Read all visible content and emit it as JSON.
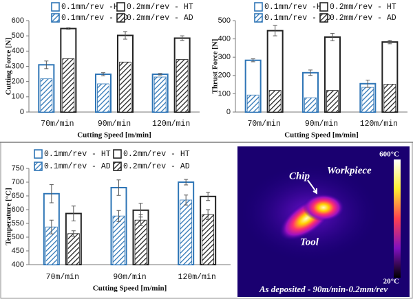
{
  "chart_data": [
    {
      "type": "bar",
      "y_label": "Cutting Force [N]",
      "x_label": "Cutting Speed [m/min]",
      "categories": [
        "70m/min",
        "90m/min",
        "120m/min"
      ],
      "ylim": [
        0,
        600
      ],
      "yticks": [
        0,
        100,
        200,
        300,
        400,
        500,
        600
      ],
      "series": [
        {
          "name": "0.1mm/rev -HT",
          "color": "#2e75b6",
          "style": "outline",
          "values": [
            310,
            248,
            248
          ],
          "errors": [
            25,
            10,
            5
          ]
        },
        {
          "name": "0.2mm/rev - HT",
          "color": "#222222",
          "style": "outline",
          "values": [
            548,
            503,
            485
          ],
          "errors": [
            5,
            25,
            15
          ]
        },
        {
          "name": "0.1mm/rev - AD",
          "color": "#2e75b6",
          "style": "hatched",
          "values": [
            218,
            185,
            230
          ]
        },
        {
          "name": "0.2mm/rev - AD",
          "color": "#222222",
          "style": "hatched",
          "values": [
            350,
            328,
            345
          ]
        }
      ]
    },
    {
      "type": "bar",
      "y_label": "Thrust Force [N]",
      "x_label": "Cutting Speed [m/min]",
      "categories": [
        "70m/min",
        "90m/min",
        "120m/min"
      ],
      "ylim": [
        0,
        500
      ],
      "yticks": [
        0,
        100,
        200,
        300,
        400,
        500
      ],
      "series": [
        {
          "name": "0.1mm/rev -HT",
          "color": "#2e75b6",
          "style": "outline",
          "values": [
            283,
            215,
            155
          ],
          "errors": [
            8,
            15,
            20
          ]
        },
        {
          "name": "0.2mm/rev - HT",
          "color": "#222222",
          "style": "outline",
          "values": [
            445,
            410,
            383
          ],
          "errors": [
            28,
            20,
            10
          ]
        },
        {
          "name": "0.1mm/rev - AD",
          "color": "#2e75b6",
          "style": "hatched",
          "values": [
            93,
            78,
            135
          ]
        },
        {
          "name": "0.2mm/rev - AD",
          "color": "#222222",
          "style": "hatched",
          "values": [
            118,
            118,
            152
          ]
        }
      ]
    },
    {
      "type": "bar",
      "y_label": "Temperature [°C]",
      "x_label": "Cutting Speed [m/min]",
      "categories": [
        "70m/min",
        "90m/min",
        "120m/min"
      ],
      "ylim": [
        400,
        750
      ],
      "yticks": [
        400,
        450,
        500,
        550,
        600,
        650,
        700,
        750
      ],
      "series": [
        {
          "name": "0.1mm/rev - HT",
          "color": "#2e75b6",
          "style": "outline",
          "values": [
            658,
            680,
            700
          ],
          "errors": [
            33,
            28,
            10
          ]
        },
        {
          "name": "0.2mm/rev - HT",
          "color": "#222222",
          "style": "outline",
          "values": [
            586,
            598,
            648
          ],
          "errors": [
            27,
            25,
            15
          ]
        },
        {
          "name": "0.1mm/rev - AD",
          "color": "#2e75b6",
          "style": "hatched",
          "values": [
            537,
            577,
            635
          ],
          "errors": [
            25,
            20,
            18
          ]
        },
        {
          "name": "0.2mm/rev - AD",
          "color": "#222222",
          "style": "hatched",
          "values": [
            513,
            562,
            582
          ],
          "errors": [
            10,
            20,
            18
          ]
        }
      ]
    }
  ],
  "image": {
    "scale_max": "600°C",
    "scale_min": "20°C",
    "labels": [
      "Chip",
      "Workpiece",
      "Tool"
    ],
    "caption": "As deposited - 90m/min-0.2mm/rev"
  }
}
